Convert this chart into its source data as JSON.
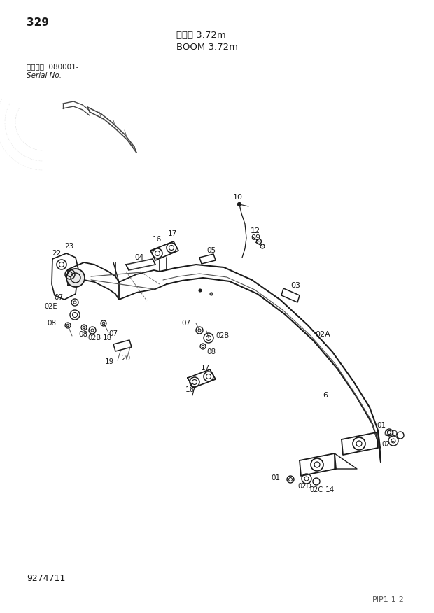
{
  "page_number": "329",
  "title_jp": "ブーム 3.72m",
  "title_en": "BOOM 3.72m",
  "serial_label_jp": "適用号機  080001-",
  "serial_label_en": "Serial No.",
  "doc_number": "9274711",
  "page_ref": "PIP1-1-2",
  "bg_color": "#ffffff",
  "line_color": "#1a1a1a",
  "label_color": "#1a1a1a"
}
